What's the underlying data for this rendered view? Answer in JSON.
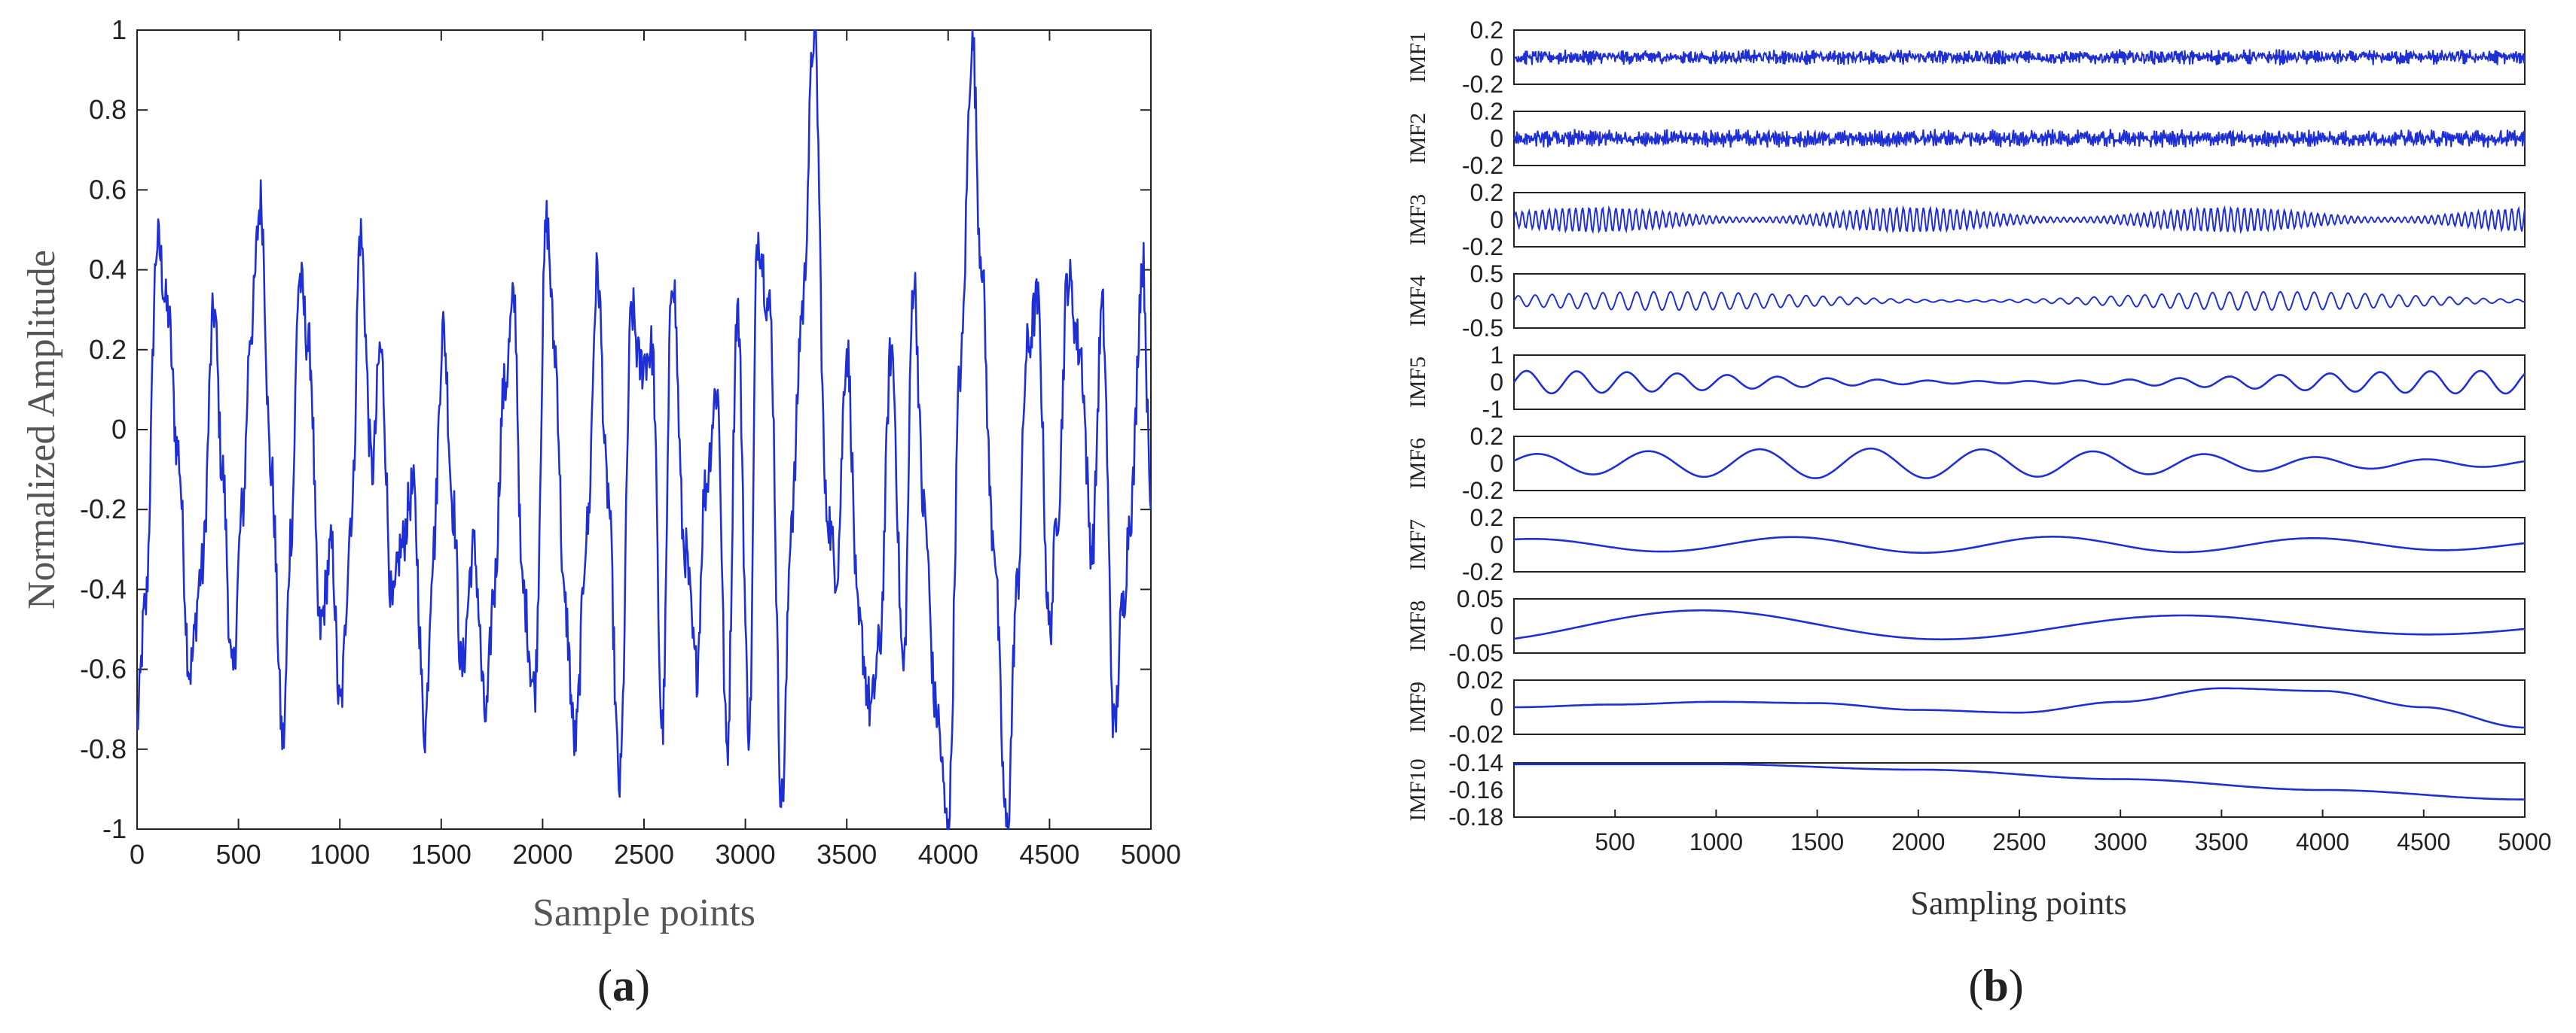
{
  "chart_data": [
    {
      "type": "line",
      "panel_label": "a",
      "xlabel": "Sample points",
      "ylabel": "Normalized Amplitude",
      "xlim": [
        0,
        5000
      ],
      "ylim": [
        -1,
        1
      ],
      "xticks": [
        0,
        500,
        1000,
        1500,
        2000,
        2500,
        3000,
        3500,
        4000,
        4500,
        5000
      ],
      "yticks": [
        1,
        0.8,
        0.6,
        0.4,
        0.2,
        0,
        -0.2,
        -0.4,
        -0.6,
        -0.8,
        -1
      ],
      "ytick_labels": [
        "1",
        "0.8",
        "0.6",
        "0.4",
        "0.2",
        "0",
        "-0.2",
        "-0.4",
        "-0.6",
        "-0.8",
        "-1"
      ],
      "grid": false,
      "color": "#1f2fd6",
      "series": [
        {
          "x": [
            0,
            40,
            100,
            150,
            200,
            260,
            320,
            380,
            420,
            470,
            520,
            560,
            610,
            660,
            720,
            760,
            800,
            850,
            900,
            960,
            1000,
            1060,
            1100,
            1160,
            1200,
            1260,
            1300,
            1360,
            1420,
            1460,
            1510,
            1560,
            1600,
            1660,
            1720,
            1760,
            1810,
            1860,
            1900,
            1960,
            2020,
            2060,
            2110,
            2160,
            2220,
            2270,
            2320,
            2380,
            2440,
            2480,
            2540,
            2590,
            2640,
            2700,
            2760,
            2800,
            2860,
            2910,
            2960,
            3020,
            3060,
            3120,
            3180,
            3230,
            3280,
            3340,
            3400,
            3450,
            3500,
            3560,
            3620,
            3660,
            3720,
            3780,
            3830,
            3880,
            3940,
            4000,
            4060,
            4120,
            4160,
            4220,
            4290,
            4340,
            4390,
            4440,
            4500,
            4540,
            4590,
            4650,
            4710,
            4760,
            4820,
            4860,
            4900,
            4960,
            5000
          ],
          "y": [
            -0.73,
            -0.45,
            0.47,
            0.3,
            -0.05,
            -0.6,
            -0.35,
            0.3,
            -0.1,
            -0.62,
            -0.2,
            0.25,
            0.57,
            -0.1,
            -0.78,
            -0.25,
            0.38,
            0.2,
            -0.5,
            -0.3,
            -0.7,
            -0.2,
            0.49,
            -0.1,
            0.2,
            -0.45,
            -0.3,
            -0.15,
            -0.75,
            -0.3,
            0.25,
            -0.2,
            -0.6,
            -0.3,
            -0.72,
            -0.4,
            0.1,
            0.32,
            -0.4,
            -0.65,
            0.52,
            0.2,
            -0.45,
            -0.78,
            -0.25,
            0.39,
            -0.15,
            -0.89,
            0.3,
            0.16,
            0.2,
            -0.75,
            0.4,
            -0.3,
            -0.6,
            -0.15,
            0.1,
            -0.8,
            0.3,
            -0.75,
            0.49,
            0.3,
            -0.93,
            -0.2,
            0.3,
            1.0,
            -0.2,
            -0.35,
            0.2,
            -0.5,
            -0.7,
            -0.55,
            0.2,
            -0.6,
            0.38,
            -0.2,
            -0.7,
            -1.0,
            0.15,
            0.98,
            0.45,
            -0.25,
            -1.0,
            -0.4,
            0.2,
            0.32,
            -0.5,
            -0.2,
            0.38,
            0.2,
            -0.3,
            0.3,
            -0.75,
            -0.45,
            -0.2,
            0.42,
            -0.2
          ]
        }
      ]
    },
    {
      "type": "line",
      "panel_label": "b",
      "xlabel": "Sampling points",
      "xlim": [
        0,
        5000
      ],
      "xticks": [
        500,
        1000,
        1500,
        2000,
        2500,
        3000,
        3500,
        4000,
        4500,
        5000
      ],
      "grid": false,
      "color": "#1f2fd6",
      "subplots": [
        {
          "ylabel": "IMF1",
          "ylim": [
            -0.2,
            0.2
          ],
          "ytick_labels": [
            "0.2",
            "0",
            "-0.2"
          ]
        },
        {
          "ylabel": "IMF2",
          "ylim": [
            -0.2,
            0.2
          ],
          "ytick_labels": [
            "0.2",
            "0",
            "-0.2"
          ]
        },
        {
          "ylabel": "IMF3",
          "ylim": [
            -0.2,
            0.2
          ],
          "ytick_labels": [
            "0.2",
            "0",
            "-0.2"
          ]
        },
        {
          "ylabel": "IMF4",
          "ylim": [
            -0.5,
            0.5
          ],
          "ytick_labels": [
            "0.5",
            "0",
            "-0.5"
          ]
        },
        {
          "ylabel": "IMF5",
          "ylim": [
            -1,
            1
          ],
          "ytick_labels": [
            "1",
            "0",
            "-1"
          ]
        },
        {
          "ylabel": "IMF6",
          "ylim": [
            -0.2,
            0.2
          ],
          "ytick_labels": [
            "0.2",
            "0",
            "-0.2"
          ]
        },
        {
          "ylabel": "IMF7",
          "ylim": [
            -0.2,
            0.2
          ],
          "ytick_labels": [
            "0.2",
            "0",
            "-0.2"
          ]
        },
        {
          "ylabel": "IMF8",
          "ylim": [
            -0.05,
            0.05
          ],
          "ytick_labels": [
            "0.05",
            "0",
            "-0.05"
          ]
        },
        {
          "ylabel": "IMF9",
          "ylim": [
            -0.02,
            0.02
          ],
          "ytick_labels": [
            "0.02",
            "0",
            "-0.02"
          ],
          "x": [
            0,
            500,
            1000,
            1500,
            2000,
            2500,
            3000,
            3500,
            4000,
            4500,
            5000
          ],
          "y": [
            0.0,
            0.002,
            0.004,
            0.003,
            -0.002,
            -0.004,
            0.004,
            0.014,
            0.012,
            0.0,
            -0.015
          ]
        },
        {
          "ylabel": "IMF10",
          "ylim": [
            -0.18,
            -0.14
          ],
          "ytick_labels": [
            "-0.14",
            "-0.16",
            "-0.18"
          ],
          "x": [
            0,
            1000,
            2000,
            3000,
            4000,
            5000
          ],
          "y": [
            -0.141,
            -0.141,
            -0.145,
            -0.152,
            -0.16,
            -0.167
          ]
        }
      ]
    }
  ]
}
